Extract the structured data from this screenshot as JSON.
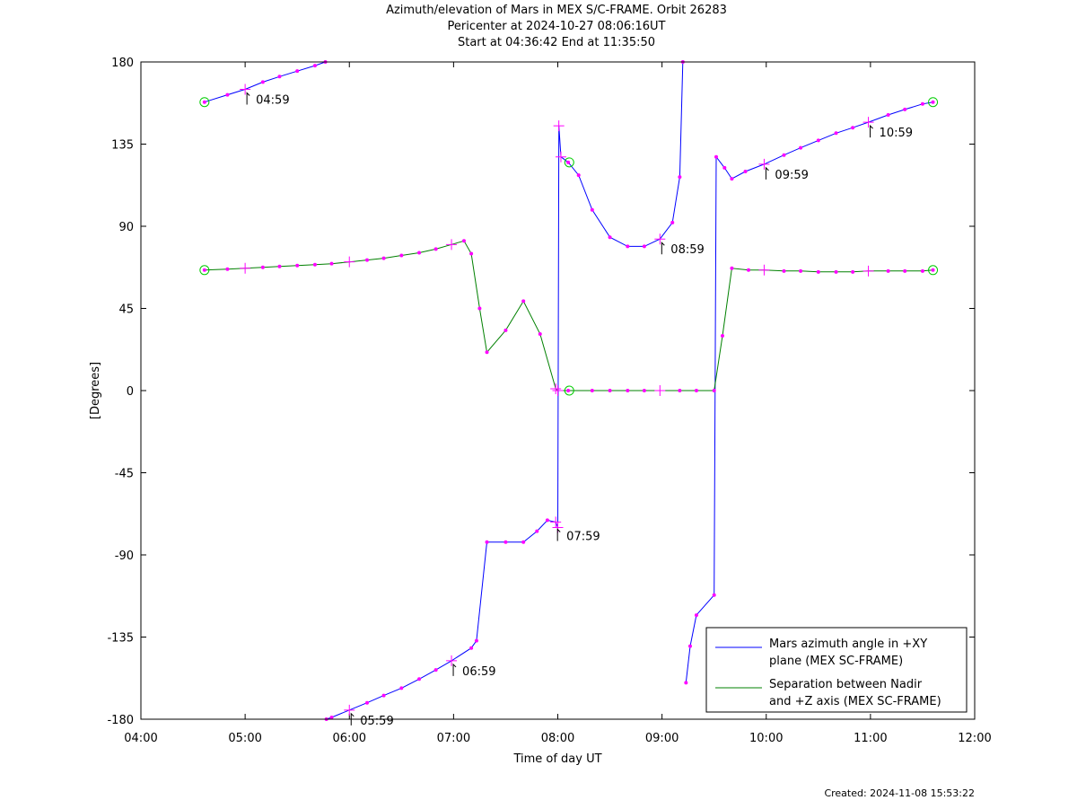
{
  "title_lines": [
    "Azimuth/elevation of Mars in MEX S/C-FRAME.  Orbit 26283",
    "Pericenter at 2024-10-27 08:06:16UT",
    "Start at 04:36:42 End at 11:35:50"
  ],
  "footer": "Created: 2024-11-08 15:53:22",
  "colors": {
    "azimuth": "#0000ff",
    "separation": "#008000",
    "markers": "#ff00ff",
    "endpoints": "#00cc00"
  },
  "chart_data": {
    "type": "line",
    "title": "Azimuth/elevation of Mars in MEX S/C-FRAME.  Orbit 26283",
    "xlabel": "Time of day UT",
    "ylabel": "[Degrees]",
    "xlim": [
      4,
      12
    ],
    "ylim": [
      -180,
      180
    ],
    "xticks": [
      4,
      5,
      6,
      7,
      8,
      9,
      10,
      11,
      12
    ],
    "xtick_labels": [
      "04:00",
      "05:00",
      "06:00",
      "07:00",
      "08:00",
      "09:00",
      "10:00",
      "11:00",
      "12:00"
    ],
    "yticks": [
      180,
      135,
      90,
      45,
      0,
      -45,
      -90,
      -135,
      -180
    ],
    "ytick_labels": [
      "180",
      "135",
      "90",
      "45",
      "0",
      "-45",
      "-90",
      "-135",
      "-180"
    ],
    "legend_position": "bottom-right",
    "series": [
      {
        "name": "Mars azimuth angle in +XY plane (MEX SC-FRAME)",
        "legend_lines": [
          "Mars azimuth angle in +XY",
          "plane (MEX SC-FRAME)"
        ],
        "color": "#0000ff",
        "points": [
          [
            4.61,
            158
          ],
          [
            4.83,
            162
          ],
          [
            5.0,
            165
          ],
          [
            5.17,
            169
          ],
          [
            5.33,
            172
          ],
          [
            5.5,
            175
          ],
          [
            5.67,
            178
          ],
          [
            5.77,
            180
          ],
          [
            5.77,
            null
          ],
          [
            5.78,
            -180
          ],
          [
            5.83,
            -179
          ],
          [
            6.0,
            -175
          ],
          [
            6.17,
            -171
          ],
          [
            6.33,
            -167
          ],
          [
            6.5,
            -163
          ],
          [
            6.67,
            -158
          ],
          [
            6.83,
            -153
          ],
          [
            6.98,
            -148
          ],
          [
            7.17,
            -141
          ],
          [
            7.22,
            -137
          ],
          [
            7.32,
            -83
          ],
          [
            7.5,
            -83
          ],
          [
            7.67,
            -83
          ],
          [
            7.8,
            -77
          ],
          [
            7.9,
            -71
          ],
          [
            7.98,
            -72
          ],
          [
            8.0,
            -75
          ],
          [
            8.01,
            145
          ],
          [
            8.03,
            128
          ],
          [
            8.1,
            125
          ],
          [
            8.2,
            118
          ],
          [
            8.33,
            99
          ],
          [
            8.5,
            84
          ],
          [
            8.67,
            79
          ],
          [
            8.83,
            79
          ],
          [
            8.98,
            83
          ],
          [
            9.1,
            92
          ],
          [
            9.17,
            117
          ],
          [
            9.2,
            180
          ],
          [
            9.2,
            null
          ],
          [
            9.23,
            -160
          ],
          [
            9.27,
            -140
          ],
          [
            9.33,
            -123
          ],
          [
            9.5,
            -112
          ],
          [
            9.52,
            128
          ],
          [
            9.6,
            122
          ],
          [
            9.67,
            116
          ],
          [
            9.8,
            120
          ],
          [
            9.98,
            124
          ],
          [
            10.17,
            129
          ],
          [
            10.33,
            133
          ],
          [
            10.5,
            137
          ],
          [
            10.67,
            141
          ],
          [
            10.83,
            144
          ],
          [
            10.98,
            147
          ],
          [
            11.17,
            151
          ],
          [
            11.33,
            154
          ],
          [
            11.5,
            157
          ],
          [
            11.6,
            158
          ]
        ]
      },
      {
        "name": "Separation between Nadir and +Z axis (MEX SC-FRAME)",
        "legend_lines": [
          "Separation between Nadir",
          "and +Z axis (MEX SC-FRAME)"
        ],
        "color": "#008000",
        "points": [
          [
            4.61,
            66
          ],
          [
            4.83,
            66.5
          ],
          [
            5.0,
            67
          ],
          [
            5.17,
            67.5
          ],
          [
            5.33,
            68
          ],
          [
            5.5,
            68.5
          ],
          [
            5.67,
            69
          ],
          [
            5.83,
            69.5
          ],
          [
            6.0,
            70.5
          ],
          [
            6.17,
            71.5
          ],
          [
            6.33,
            72.5
          ],
          [
            6.5,
            74
          ],
          [
            6.67,
            75.5
          ],
          [
            6.83,
            77.5
          ],
          [
            6.98,
            80
          ],
          [
            7.1,
            82
          ],
          [
            7.17,
            75
          ],
          [
            7.25,
            45
          ],
          [
            7.32,
            21
          ],
          [
            7.5,
            33
          ],
          [
            7.67,
            49
          ],
          [
            7.83,
            31
          ],
          [
            7.98,
            1
          ],
          [
            8.0,
            0
          ],
          [
            8.1,
            0
          ],
          [
            8.33,
            0
          ],
          [
            8.5,
            0
          ],
          [
            8.67,
            0
          ],
          [
            8.83,
            0
          ],
          [
            8.98,
            0
          ],
          [
            9.17,
            0
          ],
          [
            9.33,
            0
          ],
          [
            9.5,
            0
          ],
          [
            9.58,
            30
          ],
          [
            9.67,
            67
          ],
          [
            9.83,
            66
          ],
          [
            9.98,
            66
          ],
          [
            10.17,
            65.5
          ],
          [
            10.33,
            65.5
          ],
          [
            10.5,
            65
          ],
          [
            10.67,
            65
          ],
          [
            10.83,
            65
          ],
          [
            10.98,
            65.5
          ],
          [
            11.17,
            65.5
          ],
          [
            11.33,
            65.5
          ],
          [
            11.5,
            65.5
          ],
          [
            11.6,
            66
          ]
        ]
      }
    ],
    "endpoint_markers": [
      {
        "x": 4.61,
        "y": 158
      },
      {
        "x": 4.61,
        "y": 66
      },
      {
        "x": 8.11,
        "y": 125
      },
      {
        "x": 8.11,
        "y": 0
      },
      {
        "x": 11.6,
        "y": 158
      },
      {
        "x": 11.6,
        "y": 66
      }
    ],
    "time_annotations": [
      {
        "label": "04:59",
        "x": 5.0,
        "y": 165
      },
      {
        "label": "05:59",
        "x": 6.0,
        "y": -175
      },
      {
        "label": "06:59",
        "x": 6.98,
        "y": -148
      },
      {
        "label": "07:59",
        "x": 7.98,
        "y": -74
      },
      {
        "label": "08:59",
        "x": 8.98,
        "y": 83
      },
      {
        "label": "09:59",
        "x": 9.98,
        "y": 124
      },
      {
        "label": "10:59",
        "x": 10.98,
        "y": 147
      }
    ]
  }
}
